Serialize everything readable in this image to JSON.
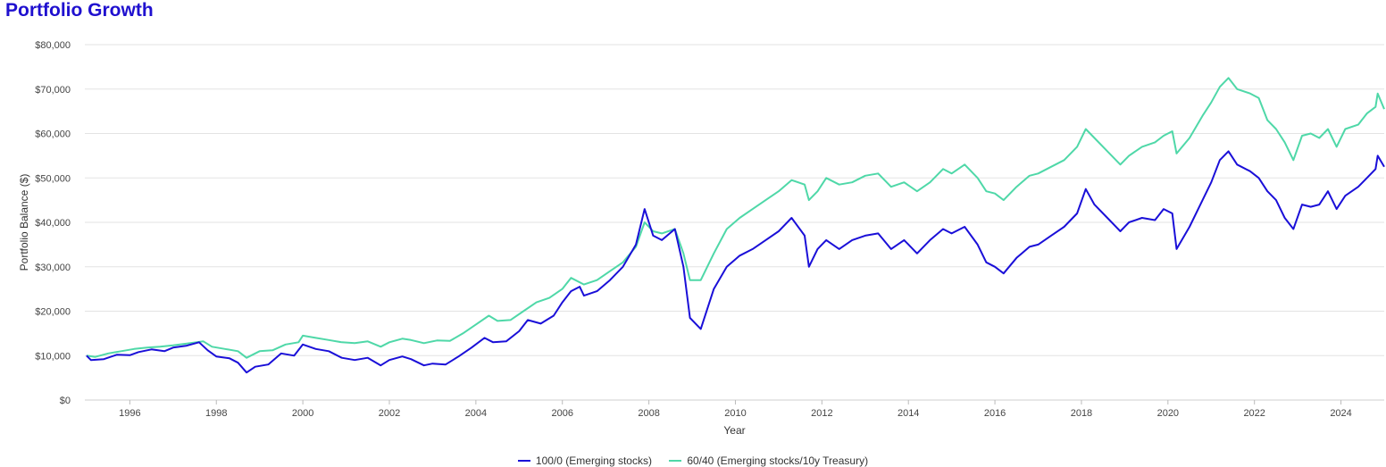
{
  "title": "Portfolio Growth",
  "chart_data": {
    "type": "line",
    "title": "Portfolio Growth",
    "xlabel": "Year",
    "ylabel": "Portfolio Balance ($)",
    "xlim": [
      1994.96,
      2025.0
    ],
    "ylim": [
      0,
      80000
    ],
    "x_ticks": [
      "1996",
      "1998",
      "2000",
      "2002",
      "2004",
      "2006",
      "2008",
      "2010",
      "2012",
      "2014",
      "2016",
      "2018",
      "2020",
      "2022",
      "2024"
    ],
    "y_ticks": [
      "$0",
      "$10,000",
      "$20,000",
      "$30,000",
      "$40,000",
      "$50,000",
      "$60,000",
      "$70,000",
      "$80,000"
    ],
    "grid": "horizontal",
    "legend": "bottom-center",
    "series": [
      {
        "name": "100/0 (Emerging stocks)",
        "color": "#1a0fd8",
        "points": [
          [
            1995.0,
            10000
          ],
          [
            1995.1,
            9000
          ],
          [
            1995.4,
            9200
          ],
          [
            1995.7,
            10200
          ],
          [
            1996.0,
            10100
          ],
          [
            1996.2,
            10800
          ],
          [
            1996.5,
            11400
          ],
          [
            1996.8,
            11000
          ],
          [
            1997.0,
            11800
          ],
          [
            1997.3,
            12200
          ],
          [
            1997.6,
            13000
          ],
          [
            1997.8,
            11200
          ],
          [
            1998.0,
            9800
          ],
          [
            1998.3,
            9400
          ],
          [
            1998.5,
            8400
          ],
          [
            1998.7,
            6200
          ],
          [
            1998.9,
            7500
          ],
          [
            1999.2,
            8000
          ],
          [
            1999.5,
            10500
          ],
          [
            1999.8,
            10000
          ],
          [
            2000.0,
            12500
          ],
          [
            2000.3,
            11500
          ],
          [
            2000.6,
            11000
          ],
          [
            2000.9,
            9500
          ],
          [
            2001.2,
            9000
          ],
          [
            2001.5,
            9500
          ],
          [
            2001.8,
            7800
          ],
          [
            2002.0,
            9000
          ],
          [
            2002.3,
            9800
          ],
          [
            2002.5,
            9200
          ],
          [
            2002.8,
            7800
          ],
          [
            2003.0,
            8200
          ],
          [
            2003.3,
            8000
          ],
          [
            2003.6,
            9800
          ],
          [
            2003.9,
            11800
          ],
          [
            2004.2,
            14000
          ],
          [
            2004.4,
            13000
          ],
          [
            2004.7,
            13200
          ],
          [
            2005.0,
            15500
          ],
          [
            2005.2,
            18000
          ],
          [
            2005.5,
            17200
          ],
          [
            2005.8,
            19000
          ],
          [
            2006.0,
            22000
          ],
          [
            2006.2,
            24500
          ],
          [
            2006.4,
            25500
          ],
          [
            2006.5,
            23500
          ],
          [
            2006.8,
            24500
          ],
          [
            2007.1,
            27000
          ],
          [
            2007.4,
            30000
          ],
          [
            2007.7,
            35000
          ],
          [
            2007.9,
            43000
          ],
          [
            2008.1,
            37000
          ],
          [
            2008.3,
            36000
          ],
          [
            2008.6,
            38500
          ],
          [
            2008.8,
            30000
          ],
          [
            2008.95,
            18500
          ],
          [
            2009.2,
            16000
          ],
          [
            2009.5,
            25000
          ],
          [
            2009.8,
            30000
          ],
          [
            2010.1,
            32500
          ],
          [
            2010.4,
            34000
          ],
          [
            2010.7,
            36000
          ],
          [
            2011.0,
            38000
          ],
          [
            2011.3,
            41000
          ],
          [
            2011.6,
            37000
          ],
          [
            2011.7,
            30000
          ],
          [
            2011.9,
            34000
          ],
          [
            2012.1,
            36000
          ],
          [
            2012.4,
            34000
          ],
          [
            2012.7,
            36000
          ],
          [
            2013.0,
            37000
          ],
          [
            2013.3,
            37500
          ],
          [
            2013.6,
            34000
          ],
          [
            2013.9,
            36000
          ],
          [
            2014.2,
            33000
          ],
          [
            2014.5,
            36000
          ],
          [
            2014.8,
            38500
          ],
          [
            2015.0,
            37500
          ],
          [
            2015.3,
            39000
          ],
          [
            2015.6,
            35000
          ],
          [
            2015.8,
            31000
          ],
          [
            2016.0,
            30000
          ],
          [
            2016.2,
            28500
          ],
          [
            2016.5,
            32000
          ],
          [
            2016.8,
            34500
          ],
          [
            2017.0,
            35000
          ],
          [
            2017.3,
            37000
          ],
          [
            2017.6,
            39000
          ],
          [
            2017.9,
            42000
          ],
          [
            2018.1,
            47500
          ],
          [
            2018.3,
            44000
          ],
          [
            2018.6,
            41000
          ],
          [
            2018.9,
            38000
          ],
          [
            2019.1,
            40000
          ],
          [
            2019.4,
            41000
          ],
          [
            2019.7,
            40500
          ],
          [
            2019.9,
            43000
          ],
          [
            2020.1,
            42000
          ],
          [
            2020.2,
            34000
          ],
          [
            2020.5,
            39000
          ],
          [
            2020.8,
            45000
          ],
          [
            2021.0,
            49000
          ],
          [
            2021.2,
            54000
          ],
          [
            2021.4,
            56000
          ],
          [
            2021.6,
            53000
          ],
          [
            2021.9,
            51500
          ],
          [
            2022.1,
            50000
          ],
          [
            2022.3,
            47000
          ],
          [
            2022.5,
            45000
          ],
          [
            2022.7,
            41000
          ],
          [
            2022.9,
            38500
          ],
          [
            2023.1,
            44000
          ],
          [
            2023.3,
            43500
          ],
          [
            2023.5,
            44000
          ],
          [
            2023.7,
            47000
          ],
          [
            2023.9,
            43000
          ],
          [
            2024.1,
            46000
          ],
          [
            2024.4,
            48000
          ],
          [
            2024.6,
            50000
          ],
          [
            2024.8,
            52000
          ],
          [
            2024.85,
            55000
          ],
          [
            2025.0,
            52500
          ]
        ]
      },
      {
        "name": "60/40 (Emerging stocks/10y Treasury)",
        "color": "#4fd8a8",
        "points": [
          [
            1995.0,
            10000
          ],
          [
            1995.2,
            9700
          ],
          [
            1995.5,
            10500
          ],
          [
            1995.8,
            11000
          ],
          [
            1996.1,
            11500
          ],
          [
            1996.4,
            11800
          ],
          [
            1996.7,
            12000
          ],
          [
            1997.0,
            12300
          ],
          [
            1997.4,
            12800
          ],
          [
            1997.7,
            13200
          ],
          [
            1997.9,
            12000
          ],
          [
            1998.2,
            11500
          ],
          [
            1998.5,
            11000
          ],
          [
            1998.7,
            9500
          ],
          [
            1999.0,
            11000
          ],
          [
            1999.3,
            11200
          ],
          [
            1999.6,
            12500
          ],
          [
            1999.9,
            13000
          ],
          [
            2000.0,
            14500
          ],
          [
            2000.3,
            14000
          ],
          [
            2000.6,
            13500
          ],
          [
            2000.9,
            13000
          ],
          [
            2001.2,
            12800
          ],
          [
            2001.5,
            13200
          ],
          [
            2001.8,
            12000
          ],
          [
            2002.0,
            13000
          ],
          [
            2002.3,
            13800
          ],
          [
            2002.5,
            13500
          ],
          [
            2002.8,
            12800
          ],
          [
            2003.1,
            13400
          ],
          [
            2003.4,
            13300
          ],
          [
            2003.7,
            15000
          ],
          [
            2004.0,
            17000
          ],
          [
            2004.3,
            19000
          ],
          [
            2004.5,
            17800
          ],
          [
            2004.8,
            18000
          ],
          [
            2005.1,
            20000
          ],
          [
            2005.4,
            22000
          ],
          [
            2005.7,
            23000
          ],
          [
            2006.0,
            25000
          ],
          [
            2006.2,
            27500
          ],
          [
            2006.5,
            26000
          ],
          [
            2006.8,
            27000
          ],
          [
            2007.1,
            29000
          ],
          [
            2007.4,
            31000
          ],
          [
            2007.7,
            34500
          ],
          [
            2007.9,
            40000
          ],
          [
            2008.1,
            38000
          ],
          [
            2008.3,
            37500
          ],
          [
            2008.6,
            38500
          ],
          [
            2008.8,
            33000
          ],
          [
            2008.95,
            27000
          ],
          [
            2009.2,
            27000
          ],
          [
            2009.5,
            33000
          ],
          [
            2009.8,
            38500
          ],
          [
            2010.1,
            41000
          ],
          [
            2010.4,
            43000
          ],
          [
            2010.7,
            45000
          ],
          [
            2011.0,
            47000
          ],
          [
            2011.3,
            49500
          ],
          [
            2011.6,
            48500
          ],
          [
            2011.7,
            45000
          ],
          [
            2011.9,
            47000
          ],
          [
            2012.1,
            50000
          ],
          [
            2012.4,
            48500
          ],
          [
            2012.7,
            49000
          ],
          [
            2013.0,
            50500
          ],
          [
            2013.3,
            51000
          ],
          [
            2013.6,
            48000
          ],
          [
            2013.9,
            49000
          ],
          [
            2014.2,
            47000
          ],
          [
            2014.5,
            49000
          ],
          [
            2014.8,
            52000
          ],
          [
            2015.0,
            51000
          ],
          [
            2015.3,
            53000
          ],
          [
            2015.6,
            50000
          ],
          [
            2015.8,
            47000
          ],
          [
            2016.0,
            46500
          ],
          [
            2016.2,
            45000
          ],
          [
            2016.5,
            48000
          ],
          [
            2016.8,
            50500
          ],
          [
            2017.0,
            51000
          ],
          [
            2017.3,
            52500
          ],
          [
            2017.6,
            54000
          ],
          [
            2017.9,
            57000
          ],
          [
            2018.1,
            61000
          ],
          [
            2018.3,
            59000
          ],
          [
            2018.6,
            56000
          ],
          [
            2018.9,
            53000
          ],
          [
            2019.1,
            55000
          ],
          [
            2019.4,
            57000
          ],
          [
            2019.7,
            58000
          ],
          [
            2019.9,
            59500
          ],
          [
            2020.1,
            60500
          ],
          [
            2020.2,
            55500
          ],
          [
            2020.5,
            59000
          ],
          [
            2020.8,
            64000
          ],
          [
            2021.0,
            67000
          ],
          [
            2021.2,
            70500
          ],
          [
            2021.4,
            72500
          ],
          [
            2021.6,
            70000
          ],
          [
            2021.9,
            69000
          ],
          [
            2022.1,
            68000
          ],
          [
            2022.3,
            63000
          ],
          [
            2022.5,
            61000
          ],
          [
            2022.7,
            58000
          ],
          [
            2022.9,
            54000
          ],
          [
            2023.1,
            59500
          ],
          [
            2023.3,
            60000
          ],
          [
            2023.5,
            59000
          ],
          [
            2023.7,
            61000
          ],
          [
            2023.9,
            57000
          ],
          [
            2024.1,
            61000
          ],
          [
            2024.4,
            62000
          ],
          [
            2024.6,
            64500
          ],
          [
            2024.8,
            66000
          ],
          [
            2024.85,
            69000
          ],
          [
            2025.0,
            65500
          ]
        ]
      }
    ]
  }
}
